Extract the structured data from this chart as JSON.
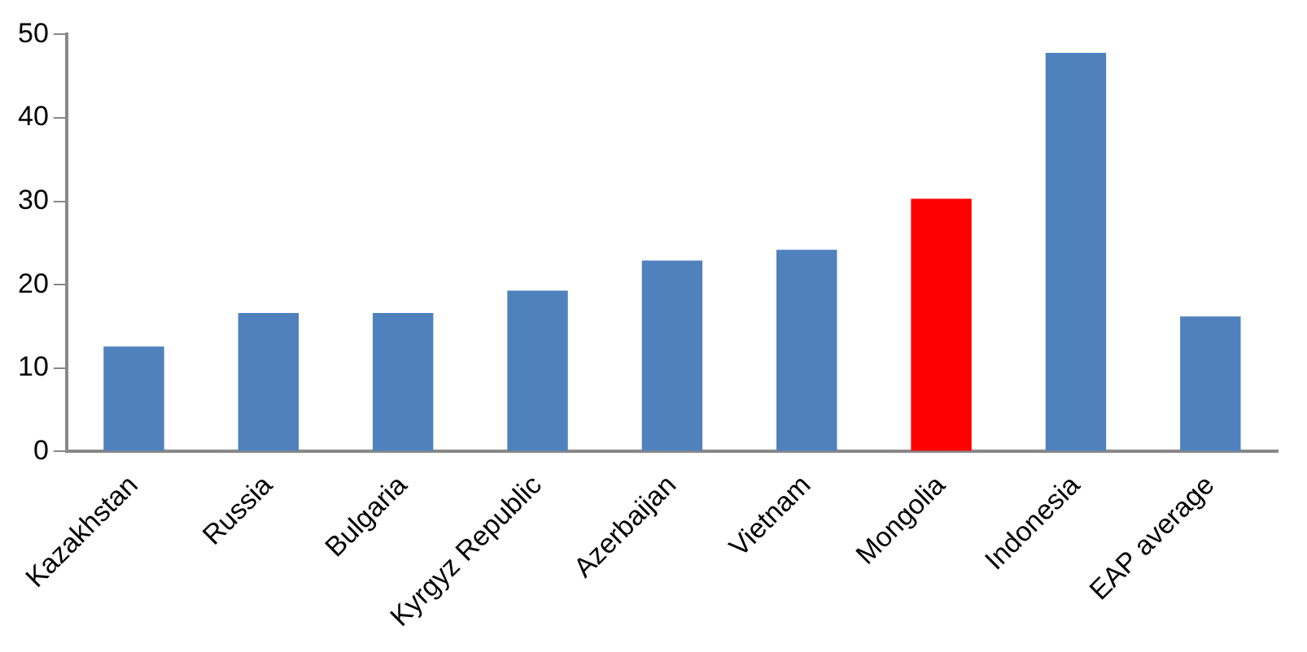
{
  "chart_data": {
    "type": "bar",
    "categories": [
      "Kazakhstan",
      "Russia",
      "Bulgaria",
      "Kyrgyz Republic",
      "Azerbaijan",
      "Vietnam",
      "Mongolia",
      "Indonesia",
      "EAP average"
    ],
    "values": [
      12.6,
      16.6,
      16.6,
      19.3,
      22.9,
      24.2,
      30.3,
      47.8,
      16.2
    ],
    "colors": [
      "#4f81bd",
      "#4f81bd",
      "#4f81bd",
      "#4f81bd",
      "#4f81bd",
      "#4f81bd",
      "#ff0000",
      "#4f81bd",
      "#4f81bd"
    ],
    "ylim": [
      0,
      50
    ],
    "yticks": [
      0,
      10,
      20,
      30,
      40,
      50
    ],
    "grid": false,
    "legend": false
  }
}
